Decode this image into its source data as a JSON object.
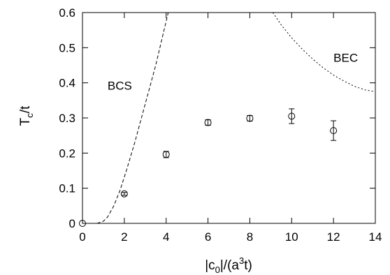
{
  "chart_data": {
    "type": "scatter",
    "xlabel": {
      "pre": "|c",
      "sub": "0",
      "mid": "|/(a",
      "sup": "3",
      "post": "t)"
    },
    "ylabel": {
      "pre": "T",
      "sub": "c",
      "post": "/t"
    },
    "xlim": [
      0,
      14
    ],
    "ylim": [
      0,
      0.6
    ],
    "xticks": [
      "0",
      "2",
      "4",
      "6",
      "8",
      "10",
      "12",
      "14"
    ],
    "yticks": [
      "0",
      "0.1",
      "0.2",
      "0.3",
      "0.4",
      "0.5",
      "0.6"
    ],
    "grid": false,
    "legend": "none",
    "points": [
      {
        "x": 0,
        "y": 0.0,
        "err": 0.0
      },
      {
        "x": 2,
        "y": 0.084,
        "err": 0.004
      },
      {
        "x": 4,
        "y": 0.196,
        "err": 0.009
      },
      {
        "x": 6,
        "y": 0.287,
        "err": 0.008
      },
      {
        "x": 8,
        "y": 0.299,
        "err": 0.008
      },
      {
        "x": 10,
        "y": 0.305,
        "err": 0.021
      },
      {
        "x": 12,
        "y": 0.264,
        "err": 0.028
      }
    ],
    "curves": [
      {
        "style": "dashed",
        "points": [
          [
            0.7,
            0.0
          ],
          [
            1.0,
            0.006
          ],
          [
            1.2,
            0.018
          ],
          [
            1.5,
            0.05
          ],
          [
            1.8,
            0.095
          ],
          [
            2.1,
            0.15
          ],
          [
            2.5,
            0.23
          ],
          [
            3.0,
            0.34
          ],
          [
            3.5,
            0.45
          ],
          [
            3.9,
            0.55
          ],
          [
            4.1,
            0.6
          ]
        ]
      },
      {
        "style": "dotted",
        "points": [
          [
            9.1,
            0.6
          ],
          [
            9.5,
            0.565
          ],
          [
            10.0,
            0.528
          ],
          [
            10.5,
            0.496
          ],
          [
            11.0,
            0.468
          ],
          [
            11.5,
            0.443
          ],
          [
            12.0,
            0.422
          ],
          [
            12.5,
            0.405
          ],
          [
            13.0,
            0.39
          ],
          [
            13.5,
            0.38
          ],
          [
            14.0,
            0.375
          ]
        ]
      }
    ],
    "annotations": [
      {
        "text": "BCS",
        "x": 1.2,
        "y": 0.38
      },
      {
        "text": "BEC",
        "x": 12.0,
        "y": 0.46
      }
    ]
  }
}
